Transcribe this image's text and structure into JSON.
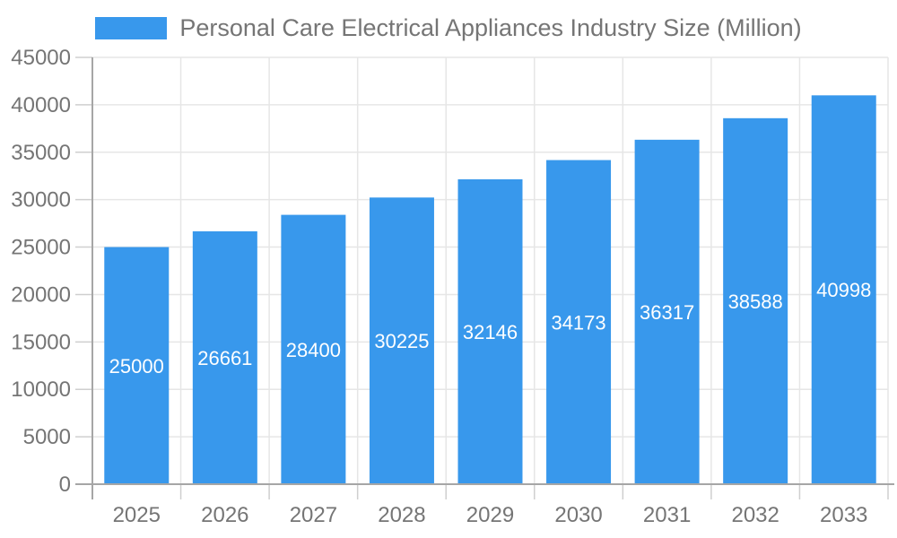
{
  "legend": {
    "label": "Personal Care Electrical Appliances Industry Size (Million)",
    "swatch_color": "#3898EC"
  },
  "chart_data": {
    "type": "bar",
    "title": "Personal Care Electrical Appliances Industry Size (Million)",
    "categories": [
      "2025",
      "2026",
      "2027",
      "2028",
      "2029",
      "2030",
      "2031",
      "2032",
      "2033"
    ],
    "values": [
      25000,
      26661,
      28400,
      30225,
      32146,
      34173,
      36317,
      38588,
      40998
    ],
    "bar_value_labels": [
      "25000",
      "26661",
      "28400",
      "30225",
      "32146",
      "34173",
      "36317",
      "38588",
      "40998"
    ],
    "xlabel": "",
    "ylabel": "",
    "ylim": [
      0,
      45000
    ],
    "ytick_step": 5000,
    "ytick_labels": [
      "0",
      "5000",
      "10000",
      "15000",
      "20000",
      "25000",
      "30000",
      "35000",
      "40000",
      "45000"
    ],
    "grid": true,
    "legend_position": "top",
    "colors": {
      "bar": "#3898EC",
      "bar_label_text": "#ffffff",
      "axis_line": "#a6a6a6",
      "grid_line": "#e6e6e6",
      "tick_mark": "#cfcfcf",
      "axis_text": "#757575",
      "legend_text": "#757575",
      "background": "#ffffff"
    }
  }
}
